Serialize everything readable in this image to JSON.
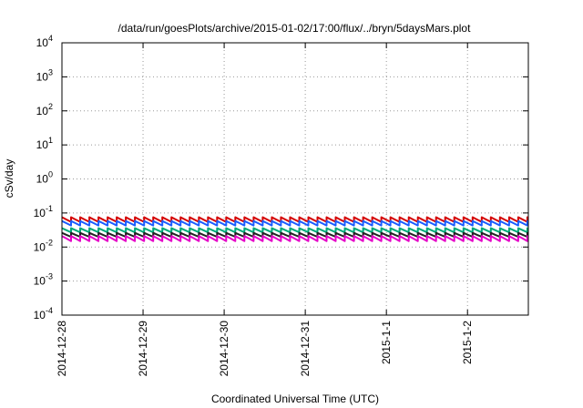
{
  "chart_data": {
    "type": "line",
    "title": "/data/run/goesPlots/archive/2015-01-02/17:00/flux/../bryn/5daysMars.plot",
    "xlabel": "Coordinated Universal Time (UTC)",
    "ylabel": "cSv/day",
    "yscale": "log",
    "ylim": [
      0.0001,
      10000
    ],
    "y_ticks": [
      {
        "value": 0.0001,
        "mantissa": "10",
        "exp": "-4"
      },
      {
        "value": 0.001,
        "mantissa": "10",
        "exp": "-3"
      },
      {
        "value": 0.01,
        "mantissa": "10",
        "exp": "-2"
      },
      {
        "value": 0.1,
        "mantissa": "10",
        "exp": "-1"
      },
      {
        "value": 1,
        "mantissa": "10",
        "exp": "0"
      },
      {
        "value": 10,
        "mantissa": "10",
        "exp": "1"
      },
      {
        "value": 100,
        "mantissa": "10",
        "exp": "2"
      },
      {
        "value": 1000,
        "mantissa": "10",
        "exp": "3"
      },
      {
        "value": 10000,
        "mantissa": "10",
        "exp": "4"
      }
    ],
    "xlim": [
      "2014-12-28T00:00",
      "2015-01-02T18:00"
    ],
    "x_ticks": [
      {
        "value": "2014-12-28T00:00",
        "label": "2014-12-28"
      },
      {
        "value": "2014-12-29T00:00",
        "label": "2014-12-29"
      },
      {
        "value": "2014-12-30T00:00",
        "label": "2014-12-30"
      },
      {
        "value": "2014-12-31T00:00",
        "label": "2014-12-31"
      },
      {
        "value": "2015-01-01T00:00",
        "label": "2015-1-1"
      },
      {
        "value": "2015-01-02T00:00",
        "label": "2015-1-2"
      }
    ],
    "grid": true,
    "sawtooth_period_hours": 2.7,
    "series": [
      {
        "color": "#d40000",
        "peak": 0.075,
        "trough": 0.055
      },
      {
        "color": "#1a5cff",
        "peak": 0.058,
        "trough": 0.043
      },
      {
        "color": "#00a878",
        "peak": 0.036,
        "trough": 0.027
      },
      {
        "color": "#222222",
        "peak": 0.026,
        "trough": 0.02
      },
      {
        "color": "#e600c8",
        "peak": 0.021,
        "trough": 0.015
      }
    ]
  }
}
